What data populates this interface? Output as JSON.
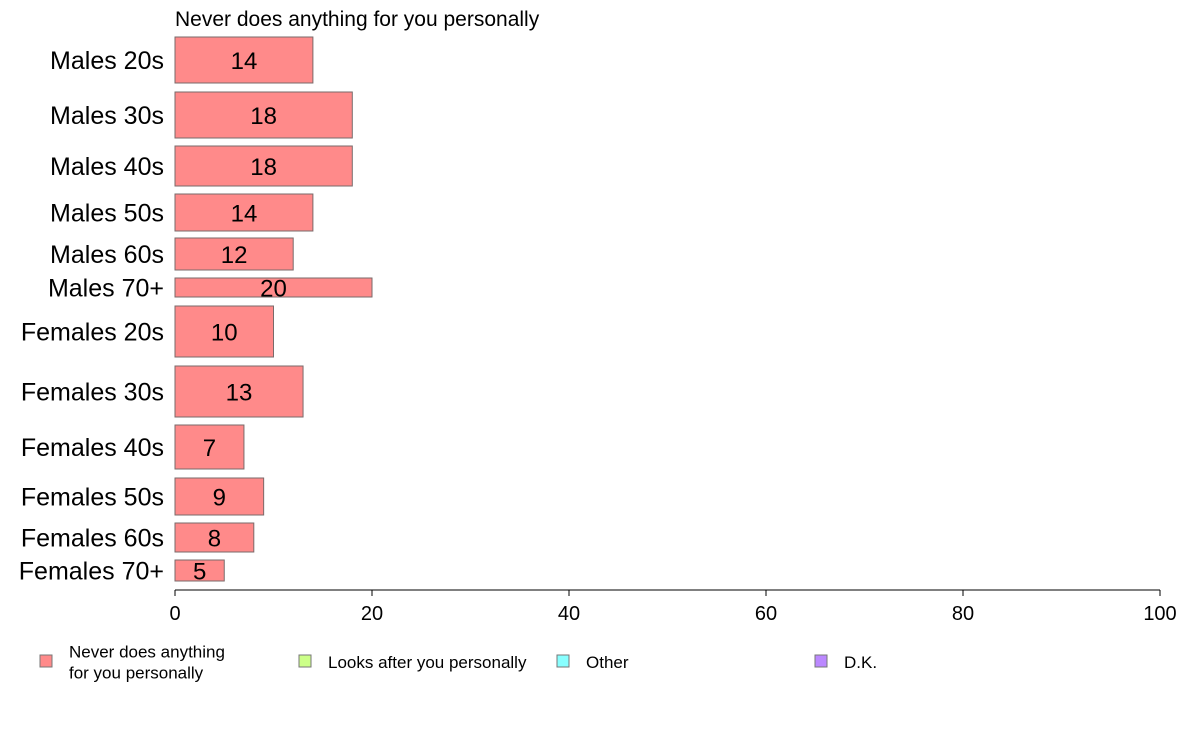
{
  "chart_data": {
    "type": "bar",
    "orientation": "horizontal",
    "title": "Never does anything for you personally",
    "categories": [
      "Males 20s",
      "Males 30s",
      "Males 40s",
      "Males 50s",
      "Males 60s",
      "Males 70+",
      "Females 20s",
      "Females 30s",
      "Females 40s",
      "Females 50s",
      "Females 60s",
      "Females 70+"
    ],
    "series": [
      {
        "name": "Never does anything for you personally",
        "color": "#ff8a8a",
        "values": [
          14,
          18,
          18,
          14,
          12,
          20,
          10,
          13,
          7,
          9,
          8,
          5
        ],
        "data_labels": [
          "14",
          "18",
          "18",
          "14",
          "12",
          "20",
          "10",
          "13",
          "7",
          "9",
          "8",
          "5"
        ]
      }
    ],
    "xlim": [
      0,
      100
    ],
    "xticks": [
      "0",
      "20",
      "40",
      "60",
      "80",
      "100"
    ],
    "grid": false,
    "legend": {
      "placement": "bottom",
      "items": [
        {
          "label_lines": [
            "Never does anything",
            "for you personally"
          ],
          "color": "#ff8a8a"
        },
        {
          "label_lines": [
            "Looks after you personally"
          ],
          "color": "#ccff88"
        },
        {
          "label_lines": [
            "Other"
          ],
          "color": "#88ffff"
        },
        {
          "label_lines": [
            "D.K."
          ],
          "color": "#bb88ff"
        }
      ]
    }
  }
}
